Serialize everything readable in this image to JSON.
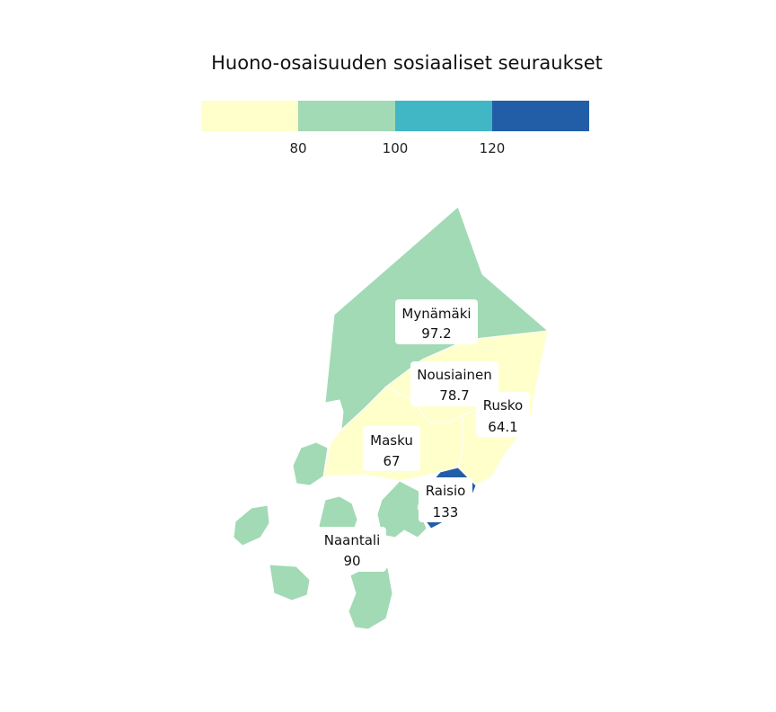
{
  "title": "Huono-osaisuuden sosiaaliset seuraukset",
  "legend": {
    "bins": [
      {
        "color": "#ffffcc"
      },
      {
        "color": "#a1dab4"
      },
      {
        "color": "#41b6c4"
      },
      {
        "color": "#225ea8"
      }
    ],
    "ticks": [
      "80",
      "100",
      "120"
    ]
  },
  "regions": [
    {
      "name": "Mynämäki",
      "value": "97.2",
      "color": "#a1dab4"
    },
    {
      "name": "Nousiainen",
      "value": "78.7",
      "color": "#ffffcc"
    },
    {
      "name": "Rusko",
      "value": "64.1",
      "color": "#ffffcc"
    },
    {
      "name": "Masku",
      "value": "67",
      "color": "#ffffcc"
    },
    {
      "name": "Raisio",
      "value": "133",
      "color": "#225ea8"
    },
    {
      "name": "Naantali",
      "value": "90",
      "color": "#a1dab4"
    }
  ]
}
